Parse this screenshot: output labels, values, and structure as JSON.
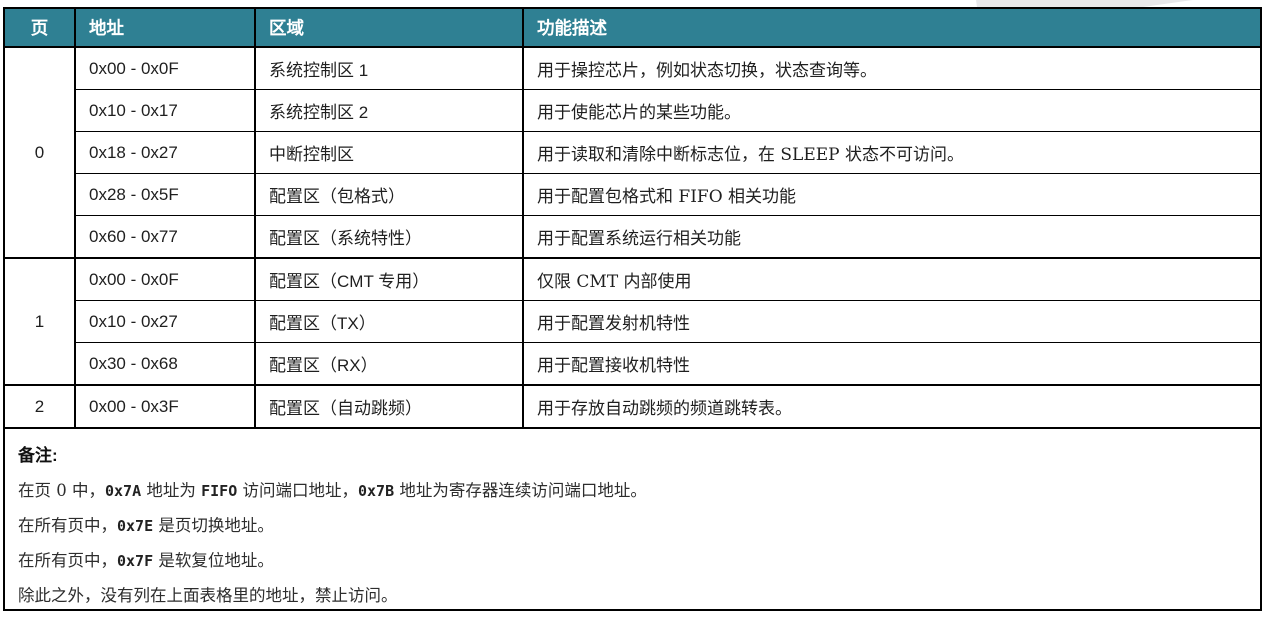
{
  "colors": {
    "header_bg": "#2F8093",
    "header_text": "#FFFFFF",
    "border": "#000000",
    "decoration_gray": "#E8E8EA"
  },
  "table": {
    "columns": [
      "页",
      "地址",
      "区域",
      "功能描述"
    ],
    "rows": [
      {
        "page": "0",
        "page_span": 5,
        "address": "0x00 - 0x0F",
        "region": "系统控制区 1",
        "description": "用于操控芯片，例如状态切换，状态查询等。"
      },
      {
        "address": "0x10 - 0x17",
        "region": "系统控制区 2",
        "description": "用于使能芯片的某些功能。"
      },
      {
        "address": "0x18 - 0x27",
        "region": "中断控制区",
        "description": "用于读取和清除中断标志位，在 SLEEP 状态不可访问。"
      },
      {
        "address": "0x28 - 0x5F",
        "region": "配置区（包格式）",
        "description": "用于配置包格式和 FIFO 相关功能"
      },
      {
        "address": "0x60 - 0x77",
        "region": "配置区（系统特性）",
        "description": "用于配置系统运行相关功能"
      },
      {
        "page": "1",
        "page_span": 3,
        "address": "0x00 - 0x0F",
        "region": "配置区（CMT 专用）",
        "description": "仅限 CMT 内部使用"
      },
      {
        "address": "0x10 - 0x27",
        "region": "配置区（TX）",
        "description": "用于配置发射机特性"
      },
      {
        "address": "0x30 - 0x68",
        "region": "配置区（RX）",
        "description": "用于配置接收机特性"
      },
      {
        "page": "2",
        "page_span": 1,
        "address": "0x00 - 0x3F",
        "region": "配置区（自动跳频）",
        "description": "用于存放自动跳频的频道跳转表。"
      }
    ]
  },
  "notes": {
    "title": "备注:",
    "lines": [
      {
        "segments": [
          {
            "text": "在页 0 中，",
            "mono": false
          },
          {
            "text": "0x7A",
            "mono": true
          },
          {
            "text": " 地址为 ",
            "mono": false
          },
          {
            "text": "FIFO",
            "mono": true
          },
          {
            "text": " 访问端口地址，",
            "mono": false
          },
          {
            "text": "0x7B",
            "mono": true
          },
          {
            "text": " 地址为寄存器连续访问端口地址。",
            "mono": false
          }
        ]
      },
      {
        "segments": [
          {
            "text": "在所有页中，",
            "mono": false
          },
          {
            "text": "0x7E",
            "mono": true
          },
          {
            "text": " 是页切换地址。",
            "mono": false
          }
        ]
      },
      {
        "segments": [
          {
            "text": "在所有页中，",
            "mono": false
          },
          {
            "text": "0x7F",
            "mono": true
          },
          {
            "text": " 是软复位地址。",
            "mono": false
          }
        ]
      },
      {
        "segments": [
          {
            "text": "除此之外，没有列在上面表格里的地址，禁止访问。",
            "mono": false
          }
        ]
      }
    ]
  }
}
